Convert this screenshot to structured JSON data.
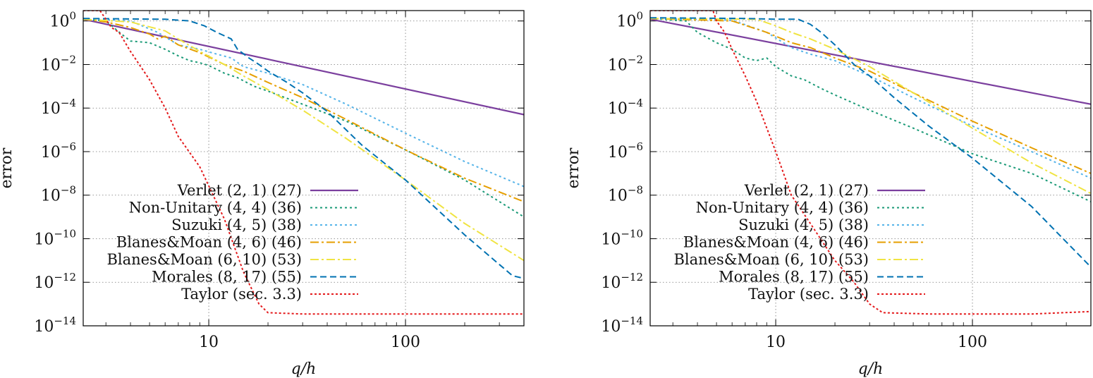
{
  "chart_data": [
    {
      "type": "line",
      "title": "",
      "xlabel": "q/h",
      "ylabel": "error",
      "xscale": "log",
      "yscale": "log",
      "xlim": [
        2.3,
        400
      ],
      "ylim": [
        1e-14,
        3
      ],
      "xticks": [
        10,
        100
      ],
      "xtick_labels": [
        "10",
        "100"
      ],
      "yticks": [
        1,
        0.01,
        0.0001,
        1e-06,
        1e-08,
        1e-10,
        1e-12,
        1e-14
      ],
      "ytick_labels": [
        {
          "base": "10",
          "exp": "0"
        },
        {
          "base": "10",
          "exp": "−2"
        },
        {
          "base": "10",
          "exp": "−4"
        },
        {
          "base": "10",
          "exp": "−6"
        },
        {
          "base": "10",
          "exp": "−8"
        },
        {
          "base": "10",
          "exp": "−10"
        },
        {
          "base": "10",
          "exp": "−12"
        },
        {
          "base": "10",
          "exp": "−14"
        }
      ],
      "grid": true,
      "legend_position": "bottom-left",
      "series": [
        {
          "name": "Verlet (2, 1)  (27)",
          "color": "#7b3f9e",
          "dash": "solid",
          "points": [
            [
              2.3,
              1.2
            ],
            [
              400,
              5e-05
            ]
          ]
        },
        {
          "name": "Non-Unitary (4, 4)  (36)",
          "color": "#1a9a77",
          "dash": "dot",
          "points": [
            [
              2.3,
              1.2
            ],
            [
              3,
              1.0
            ],
            [
              3.6,
              0.25
            ],
            [
              4,
              0.12
            ],
            [
              5,
              0.1
            ],
            [
              6,
              0.05
            ],
            [
              7,
              0.025
            ],
            [
              8,
              0.015
            ],
            [
              9,
              0.012
            ],
            [
              10,
              0.009
            ],
            [
              12,
              0.004
            ],
            [
              14,
              0.0025
            ],
            [
              17,
              0.001
            ],
            [
              20,
              0.0006
            ],
            [
              30,
              0.00015
            ],
            [
              50,
              2.5e-05
            ],
            [
              100,
              1.2e-06
            ],
            [
              200,
              5e-08
            ],
            [
              400,
              1e-09
            ]
          ]
        },
        {
          "name": "Suzuki (4, 5)  (38)",
          "color": "#56b4e9",
          "dash": "dot",
          "points": [
            [
              2.3,
              1.3
            ],
            [
              4,
              1.0
            ],
            [
              5.5,
              0.3
            ],
            [
              7,
              0.08
            ],
            [
              9,
              0.05
            ],
            [
              11,
              0.03
            ],
            [
              13,
              0.02
            ],
            [
              15,
              0.008
            ],
            [
              20,
              0.004
            ],
            [
              30,
              0.0012
            ],
            [
              50,
              0.00015
            ],
            [
              100,
              7e-06
            ],
            [
              200,
              3.5e-07
            ],
            [
              400,
              2.5e-08
            ]
          ]
        },
        {
          "name": "Blanes&Moan (4, 6)  (46)",
          "color": "#e69f00",
          "dash": "dashdot",
          "points": [
            [
              2.3,
              1.2
            ],
            [
              3,
              0.9
            ],
            [
              4,
              0.5
            ],
            [
              5,
              0.25
            ],
            [
              5.5,
              0.15
            ],
            [
              6,
              0.2
            ],
            [
              7,
              0.08
            ],
            [
              9,
              0.035
            ],
            [
              12,
              0.01
            ],
            [
              15,
              0.005
            ],
            [
              20,
              0.0015
            ],
            [
              30,
              0.0003
            ],
            [
              50,
              3e-05
            ],
            [
              100,
              1.2e-06
            ],
            [
              200,
              6e-08
            ],
            [
              400,
              5e-09
            ]
          ]
        },
        {
          "name": "Blanes&Moan (6, 10)  (53)",
          "color": "#f0e442",
          "dash": "dashdot",
          "points": [
            [
              2.3,
              1.2
            ],
            [
              4,
              0.9
            ],
            [
              6,
              0.35
            ],
            [
              7,
              0.15
            ],
            [
              9,
              0.04
            ],
            [
              12,
              0.01
            ],
            [
              15,
              0.003
            ],
            [
              20,
              0.0007
            ],
            [
              30,
              8e-05
            ],
            [
              50,
              4e-06
            ],
            [
              100,
              5e-08
            ],
            [
              200,
              5e-10
            ],
            [
              400,
              1e-11
            ]
          ]
        },
        {
          "name": "Morales (8, 17)  (55)",
          "color": "#0072b2",
          "dash": "dash",
          "points": [
            [
              2.3,
              1.3
            ],
            [
              6,
              1.2
            ],
            [
              8,
              1.0
            ],
            [
              9.5,
              0.6
            ],
            [
              11,
              0.3
            ],
            [
              13,
              0.15
            ],
            [
              14,
              0.05
            ],
            [
              16,
              0.02
            ],
            [
              18,
              0.01
            ],
            [
              20,
              0.005
            ],
            [
              25,
              0.0015
            ],
            [
              30,
              0.0005
            ],
            [
              40,
              7e-05
            ],
            [
              60,
              2e-06
            ],
            [
              100,
              5e-08
            ],
            [
              200,
              1.5e-10
            ],
            [
              350,
              2e-12
            ],
            [
              400,
              1.5e-12
            ]
          ]
        },
        {
          "name": "Taylor (sec. 3.3)",
          "color": "#e41a1c",
          "dash": "dotted",
          "points": [
            [
              2.3,
              3
            ],
            [
              2.8,
              3
            ],
            [
              3.2,
              0.5
            ],
            [
              3.5,
              0.3
            ],
            [
              4,
              0.04
            ],
            [
              5,
              0.002
            ],
            [
              6,
              0.0001
            ],
            [
              7,
              5e-06
            ],
            [
              9,
              2e-07
            ],
            [
              12,
              8e-10
            ],
            [
              15,
              3e-12
            ],
            [
              18,
              1e-13
            ],
            [
              20,
              4e-14
            ],
            [
              30,
              3.5e-14
            ],
            [
              60,
              3.5e-14
            ],
            [
              100,
              3.5e-14
            ],
            [
              200,
              3.5e-14
            ],
            [
              400,
              3.5e-14
            ]
          ]
        }
      ]
    },
    {
      "type": "line",
      "title": "",
      "xlabel": "q/h",
      "ylabel": "error",
      "xscale": "log",
      "yscale": "log",
      "xlim": [
        2.3,
        400
      ],
      "ylim": [
        1e-14,
        3
      ],
      "xticks": [
        10,
        100
      ],
      "xtick_labels": [
        "10",
        "100"
      ],
      "yticks": [
        1,
        0.01,
        0.0001,
        1e-06,
        1e-08,
        1e-10,
        1e-12,
        1e-14
      ],
      "ytick_labels": [
        {
          "base": "10",
          "exp": "0"
        },
        {
          "base": "10",
          "exp": "−2"
        },
        {
          "base": "10",
          "exp": "−4"
        },
        {
          "base": "10",
          "exp": "−6"
        },
        {
          "base": "10",
          "exp": "−8"
        },
        {
          "base": "10",
          "exp": "−10"
        },
        {
          "base": "10",
          "exp": "−12"
        },
        {
          "base": "10",
          "exp": "−14"
        }
      ],
      "grid": true,
      "legend_position": "bottom-left",
      "series": [
        {
          "name": "Verlet (2, 1)  (27)",
          "color": "#7b3f9e",
          "dash": "solid",
          "points": [
            [
              2.3,
              1.2
            ],
            [
              400,
              0.00015
            ]
          ]
        },
        {
          "name": "Non-Unitary (4, 4)  (36)",
          "color": "#1a9a77",
          "dash": "dot",
          "points": [
            [
              2.3,
              1.3
            ],
            [
              3.5,
              1.0
            ],
            [
              4,
              0.3
            ],
            [
              5,
              0.1
            ],
            [
              6,
              0.05
            ],
            [
              7,
              0.02
            ],
            [
              8,
              0.015
            ],
            [
              9,
              0.02
            ],
            [
              10,
              0.008
            ],
            [
              12,
              0.003
            ],
            [
              14,
              0.002
            ],
            [
              17,
              0.0008
            ],
            [
              20,
              0.0004
            ],
            [
              30,
              8e-05
            ],
            [
              50,
              1.2e-05
            ],
            [
              100,
              8e-07
            ],
            [
              200,
              1e-07
            ],
            [
              400,
              5e-09
            ]
          ]
        },
        {
          "name": "Suzuki (4, 5)  (38)",
          "color": "#56b4e9",
          "dash": "dot",
          "points": [
            [
              2.3,
              1.3
            ],
            [
              6,
              1.1
            ],
            [
              9,
              0.3
            ],
            [
              12,
              0.06
            ],
            [
              15,
              0.03
            ],
            [
              20,
              0.015
            ],
            [
              30,
              0.003
            ],
            [
              50,
              0.0003
            ],
            [
              100,
              1.5e-05
            ],
            [
              200,
              1e-06
            ],
            [
              400,
              6e-08
            ]
          ]
        },
        {
          "name": "Blanes&Moan (4, 6)  (46)",
          "color": "#e69f00",
          "dash": "dashdot",
          "points": [
            [
              2.3,
              1.3
            ],
            [
              6,
              1.0
            ],
            [
              9,
              0.3
            ],
            [
              12,
              0.1
            ],
            [
              15,
              0.06
            ],
            [
              20,
              0.02
            ],
            [
              30,
              0.005
            ],
            [
              50,
              0.0005
            ],
            [
              100,
              2.5e-05
            ],
            [
              200,
              1.5e-06
            ],
            [
              400,
              1e-07
            ]
          ]
        },
        {
          "name": "Blanes&Moan (6, 10)  (53)",
          "color": "#f0e442",
          "dash": "dashdot",
          "points": [
            [
              2.3,
              1.3
            ],
            [
              8,
              1.2
            ],
            [
              10,
              0.6
            ],
            [
              12,
              0.3
            ],
            [
              15,
              0.15
            ],
            [
              20,
              0.05
            ],
            [
              30,
              0.008
            ],
            [
              50,
              0.0005
            ],
            [
              100,
              1.2e-05
            ],
            [
              200,
              3e-07
            ],
            [
              400,
              1.2e-08
            ]
          ]
        },
        {
          "name": "Morales (8, 17)  (55)",
          "color": "#0072b2",
          "dash": "dash",
          "points": [
            [
              2.3,
              1.4
            ],
            [
              7,
              1.3
            ],
            [
              10,
              1.2
            ],
            [
              13,
              1.2
            ],
            [
              15,
              0.7
            ],
            [
              17,
              0.3
            ],
            [
              20,
              0.08
            ],
            [
              25,
              0.01
            ],
            [
              30,
              0.003
            ],
            [
              40,
              0.0003
            ],
            [
              60,
              1.5e-05
            ],
            [
              100,
              5e-07
            ],
            [
              200,
              3e-09
            ],
            [
              400,
              5e-12
            ]
          ]
        },
        {
          "name": "Taylor (sec. 3.3)",
          "color": "#e41a1c",
          "dash": "dotted",
          "points": [
            [
              2.3,
              3
            ],
            [
              4.8,
              3
            ],
            [
              5,
              1.0
            ],
            [
              5.5,
              0.3
            ],
            [
              6,
              0.05
            ],
            [
              7,
              0.003
            ],
            [
              8,
              0.0002
            ],
            [
              10,
              1e-06
            ],
            [
              12,
              1e-08
            ],
            [
              15,
              5e-10
            ],
            [
              20,
              1e-11
            ],
            [
              25,
              1e-12
            ],
            [
              30,
              1e-13
            ],
            [
              35,
              4e-14
            ],
            [
              60,
              3.5e-14
            ],
            [
              100,
              3.5e-14
            ],
            [
              200,
              3.5e-14
            ],
            [
              400,
              4.5e-14
            ]
          ]
        }
      ]
    }
  ]
}
